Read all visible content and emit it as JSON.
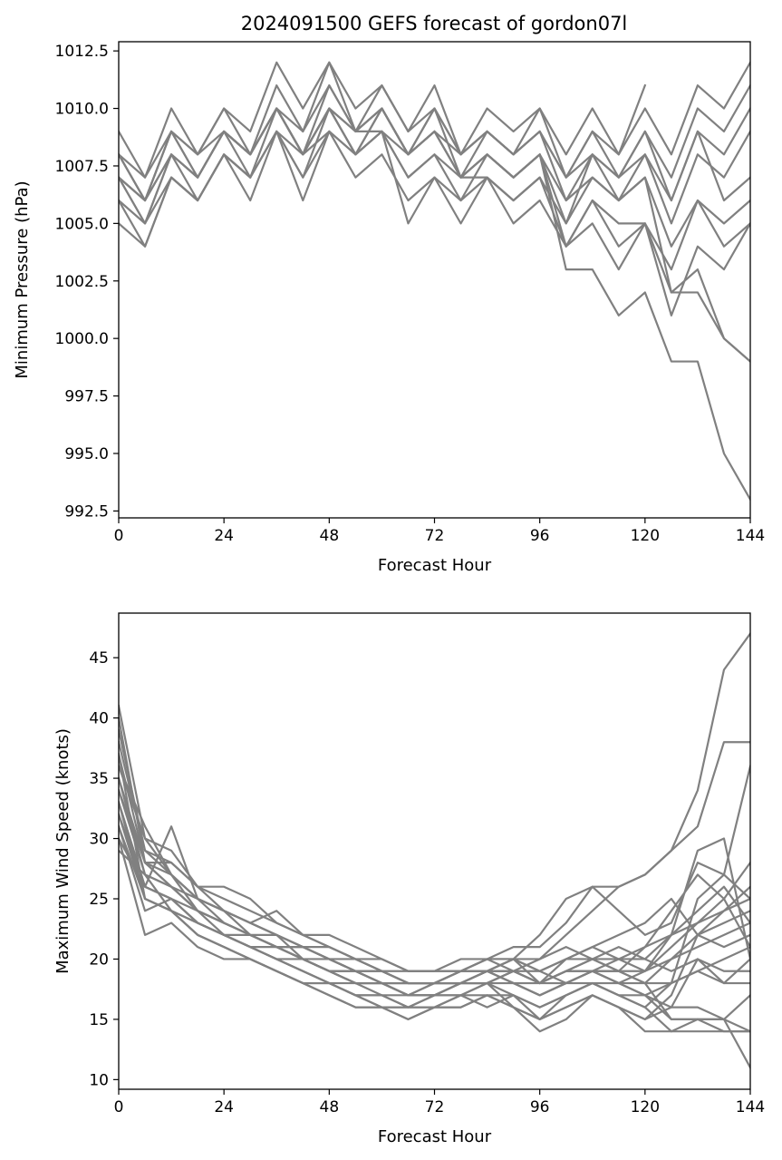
{
  "figure": {
    "title": "2024091500 GEFS forecast of gordon07l"
  },
  "chart_data": [
    {
      "type": "line",
      "title": "2024091500 GEFS forecast of gordon07l",
      "xlabel": "Forecast Hour",
      "ylabel": "Minimum Pressure (hPa)",
      "xlim": [
        0,
        144
      ],
      "ylim": [
        992.2,
        1012.9
      ],
      "xticks": [
        0,
        24,
        48,
        72,
        96,
        120,
        144
      ],
      "yticks": [
        992.5,
        995.0,
        997.5,
        1000.0,
        1002.5,
        1005.0,
        1007.5,
        1010.0,
        1012.5
      ],
      "grid": false,
      "line_color": "#808080",
      "x": [
        0,
        6,
        12,
        18,
        24,
        30,
        36,
        42,
        48,
        54,
        60,
        66,
        72,
        78,
        84,
        90,
        96,
        102,
        108,
        114,
        120,
        126,
        132,
        138,
        144
      ],
      "series": [
        {
          "values": [
            1009,
            1007,
            1010,
            1008,
            1010,
            1009,
            1012,
            1010,
            1012,
            1010,
            1011,
            1009,
            1011,
            1008,
            1010,
            1009,
            1010,
            1008,
            1010,
            1008,
            1011,
            null,
            null,
            null,
            null
          ]
        },
        {
          "values": [
            1008,
            1007,
            1009,
            1008,
            1010,
            1008,
            1011,
            1009,
            1012,
            1009,
            1011,
            1009,
            1010,
            1008,
            1009,
            1008,
            1010,
            1007,
            1009,
            1008,
            1010,
            1008,
            1011,
            1010,
            1012
          ]
        },
        {
          "values": [
            1008,
            1006,
            1009,
            1007,
            1009,
            1008,
            1010,
            1008,
            1011,
            1009,
            1010,
            1008,
            1010,
            1007,
            1009,
            1008,
            1009,
            1007,
            1009,
            1007,
            1009,
            1007,
            1010,
            1009,
            1011
          ]
        },
        {
          "values": [
            1007,
            1006,
            1008,
            1007,
            1009,
            1007,
            1010,
            1008,
            1010,
            1008,
            1010,
            1008,
            1009,
            1007,
            1008,
            1007,
            1008,
            1006,
            1008,
            1007,
            1008,
            1006,
            1009,
            1008,
            1010
          ]
        },
        {
          "values": [
            1007,
            1005,
            1008,
            1006,
            1008,
            1007,
            1009,
            1007,
            1010,
            1008,
            1009,
            1007,
            1008,
            1006,
            1008,
            1007,
            1008,
            1005,
            1008,
            1006,
            1008,
            1005,
            1008,
            1007,
            1009
          ]
        },
        {
          "values": [
            1006,
            1005,
            1007,
            1006,
            1008,
            1007,
            1009,
            1008,
            1009,
            1008,
            1009,
            1007,
            1008,
            1007,
            1007,
            1006,
            1007,
            1005,
            1007,
            1006,
            1007,
            1004,
            1006,
            1005,
            1006
          ]
        },
        {
          "values": [
            1006,
            1004,
            1007,
            1006,
            1008,
            1006,
            1009,
            1006,
            1009,
            1007,
            1008,
            1006,
            1007,
            1006,
            1007,
            1005,
            1006,
            1004,
            1006,
            1004,
            1005,
            1003,
            1006,
            1004,
            1005
          ]
        },
        {
          "values": [
            1005,
            1004,
            1007,
            1006,
            1008,
            1007,
            1009,
            1007,
            1009,
            1008,
            1009,
            1005,
            1007,
            1005,
            1007,
            1006,
            1007,
            1004,
            1005,
            1003,
            1005,
            1001,
            1004,
            1003,
            1005
          ]
        },
        {
          "values": [
            1007,
            1005,
            1008,
            1007,
            1009,
            1008,
            1010,
            1008,
            1010,
            1009,
            1009,
            1008,
            1009,
            1007,
            1008,
            1007,
            1008,
            1003,
            1003,
            1001,
            1002,
            999,
            999,
            995,
            993
          ]
        },
        {
          "values": [
            1008,
            1006,
            1009,
            1007,
            1009,
            1008,
            1010,
            1008,
            1010,
            1009,
            1010,
            1008,
            1009,
            1007,
            1008,
            1007,
            1008,
            1004,
            1006,
            1005,
            1005,
            1002,
            1002,
            1000,
            999
          ]
        },
        {
          "values": [
            1007,
            1006,
            1008,
            1007,
            1009,
            1008,
            1010,
            1008,
            1010,
            1008,
            1010,
            1008,
            1009,
            1008,
            1009,
            1008,
            1009,
            1006,
            1007,
            1006,
            1007,
            1002,
            1003,
            1000,
            999
          ]
        },
        {
          "values": [
            1008,
            1006,
            1009,
            1008,
            1009,
            1008,
            1010,
            1009,
            1011,
            1009,
            1010,
            1008,
            1010,
            1008,
            1009,
            1008,
            1009,
            1007,
            1008,
            1007,
            1009,
            1006,
            1009,
            1006,
            1007
          ]
        }
      ]
    },
    {
      "type": "line",
      "title": "",
      "xlabel": "Forecast Hour",
      "ylabel": "Maximum Wind Speed (knots)",
      "xlim": [
        0,
        144
      ],
      "ylim": [
        9.2,
        48.7
      ],
      "xticks": [
        0,
        24,
        48,
        72,
        96,
        120,
        144
      ],
      "yticks": [
        10,
        15,
        20,
        25,
        30,
        35,
        40,
        45
      ],
      "grid": false,
      "line_color": "#808080",
      "x": [
        0,
        6,
        12,
        18,
        24,
        30,
        36,
        42,
        48,
        54,
        60,
        66,
        72,
        78,
        84,
        90,
        96,
        102,
        108,
        114,
        120,
        126,
        132,
        138,
        144
      ],
      "series": [
        {
          "values": [
            41,
            30,
            27,
            24,
            22,
            21,
            20,
            19,
            18,
            18,
            17,
            17,
            17,
            18,
            18,
            19,
            20,
            22,
            24,
            26,
            27,
            29,
            34,
            44,
            47
          ]
        },
        {
          "values": [
            39,
            29,
            27,
            25,
            23,
            22,
            21,
            20,
            19,
            18,
            18,
            17,
            18,
            18,
            19,
            20,
            22,
            25,
            26,
            26,
            27,
            29,
            31,
            38,
            38
          ]
        },
        {
          "values": [
            37,
            28,
            28,
            26,
            24,
            22,
            22,
            21,
            20,
            19,
            18,
            18,
            18,
            19,
            20,
            21,
            21,
            23,
            26,
            24,
            22,
            23,
            28,
            27,
            36
          ]
        },
        {
          "values": [
            36,
            30,
            29,
            26,
            26,
            25,
            23,
            22,
            21,
            20,
            19,
            18,
            18,
            18,
            19,
            20,
            20,
            21,
            20,
            21,
            20,
            22,
            29,
            30,
            20
          ]
        },
        {
          "values": [
            35,
            28,
            26,
            25,
            24,
            23,
            22,
            20,
            19,
            19,
            18,
            17,
            17,
            18,
            18,
            19,
            18,
            20,
            21,
            22,
            23,
            25,
            22,
            24,
            26
          ]
        },
        {
          "values": [
            34,
            27,
            26,
            24,
            23,
            22,
            21,
            20,
            19,
            18,
            18,
            17,
            18,
            19,
            19,
            18,
            18,
            19,
            20,
            19,
            21,
            24,
            27,
            25,
            28
          ]
        },
        {
          "values": [
            33,
            26,
            25,
            23,
            22,
            21,
            20,
            19,
            18,
            17,
            17,
            16,
            17,
            17,
            18,
            18,
            17,
            18,
            19,
            18,
            19,
            22,
            24,
            26,
            23
          ]
        },
        {
          "values": [
            32,
            25,
            24,
            22,
            21,
            20,
            19,
            18,
            18,
            17,
            16,
            16,
            16,
            17,
            17,
            16,
            15,
            17,
            18,
            17,
            16,
            18,
            25,
            27,
            25
          ]
        },
        {
          "values": [
            31,
            24,
            25,
            23,
            22,
            21,
            20,
            19,
            18,
            17,
            16,
            16,
            16,
            17,
            18,
            16,
            15,
            16,
            17,
            16,
            15,
            17,
            22,
            21,
            22
          ]
        },
        {
          "values": [
            30,
            22,
            23,
            21,
            20,
            20,
            19,
            18,
            17,
            16,
            16,
            15,
            16,
            16,
            17,
            17,
            15,
            16,
            17,
            16,
            15,
            16,
            20,
            18,
            18
          ]
        },
        {
          "values": [
            29,
            27,
            24,
            22,
            21,
            20,
            19,
            18,
            18,
            17,
            17,
            16,
            17,
            17,
            16,
            17,
            16,
            17,
            18,
            17,
            16,
            14,
            15,
            14,
            14
          ]
        },
        {
          "values": [
            33,
            25,
            24,
            22,
            21,
            20,
            19,
            18,
            17,
            16,
            16,
            15,
            16,
            16,
            17,
            16,
            14,
            15,
            17,
            16,
            14,
            14,
            14,
            14,
            14
          ]
        },
        {
          "values": [
            38,
            29,
            28,
            26,
            25,
            24,
            23,
            22,
            21,
            20,
            19,
            18,
            18,
            18,
            19,
            18,
            17,
            18,
            19,
            18,
            18,
            15,
            15,
            15,
            11
          ]
        },
        {
          "values": [
            35,
            27,
            26,
            24,
            23,
            22,
            21,
            20,
            19,
            18,
            18,
            17,
            17,
            18,
            19,
            18,
            17,
            18,
            19,
            18,
            17,
            15,
            15,
            15,
            17
          ]
        },
        {
          "values": [
            32,
            26,
            25,
            23,
            22,
            21,
            20,
            20,
            19,
            18,
            18,
            17,
            17,
            18,
            18,
            17,
            16,
            17,
            18,
            17,
            17,
            18,
            19,
            18,
            20
          ]
        },
        {
          "values": [
            34,
            28,
            27,
            25,
            24,
            23,
            22,
            21,
            21,
            20,
            20,
            19,
            19,
            19,
            20,
            20,
            18,
            19,
            20,
            19,
            19,
            20,
            21,
            22,
            23
          ]
        },
        {
          "values": [
            31,
            25,
            24,
            23,
            22,
            21,
            21,
            20,
            20,
            19,
            19,
            18,
            18,
            19,
            19,
            19,
            18,
            19,
            19,
            19,
            18,
            20,
            22,
            23,
            24
          ]
        },
        {
          "values": [
            36,
            31,
            27,
            25,
            24,
            23,
            22,
            21,
            20,
            19,
            19,
            18,
            18,
            19,
            19,
            20,
            19,
            20,
            21,
            20,
            19,
            21,
            23,
            25,
            21
          ]
        },
        {
          "values": [
            33,
            26,
            31,
            25,
            24,
            23,
            24,
            22,
            22,
            21,
            20,
            19,
            19,
            19,
            20,
            20,
            19,
            20,
            20,
            20,
            20,
            19,
            20,
            19,
            19
          ]
        },
        {
          "values": [
            30,
            26,
            25,
            24,
            23,
            22,
            21,
            21,
            20,
            20,
            19,
            19,
            19,
            20,
            20,
            19,
            18,
            19,
            19,
            20,
            21,
            22,
            23,
            24,
            25
          ]
        },
        {
          "values": [
            40,
            28,
            26,
            24,
            23,
            22,
            21,
            21,
            20,
            19,
            18,
            18,
            18,
            18,
            19,
            19,
            18,
            18,
            19,
            19,
            18,
            18,
            19,
            20,
            21
          ]
        },
        {
          "values": [
            37,
            25,
            24,
            23,
            22,
            22,
            21,
            20,
            19,
            19,
            18,
            18,
            18,
            18,
            18,
            19,
            19,
            18,
            18,
            18,
            17,
            16,
            16,
            15,
            14
          ]
        }
      ]
    }
  ]
}
